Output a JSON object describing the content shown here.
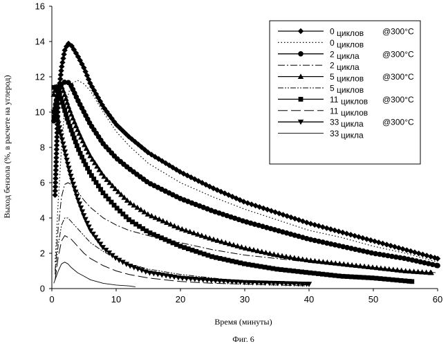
{
  "figure_caption": "Фиг. 6",
  "chart_data": {
    "type": "line",
    "xlabel": "Время (минуты)",
    "ylabel": "Выход бензола (%, в расчете на углерод)",
    "xlim": [
      0,
      60
    ],
    "ylim": [
      0,
      16
    ],
    "xticks": [
      0,
      10,
      20,
      30,
      40,
      50,
      60
    ],
    "yticks": [
      0,
      2,
      4,
      6,
      8,
      10,
      12,
      14,
      16
    ],
    "grid": false,
    "legend_position": "top-right",
    "series": [
      {
        "name": "0 циклов @300°C",
        "legend_main": "0",
        "legend_unit": "циклов",
        "legend_suffix": "@300°C",
        "style": "solid",
        "marker": "diamond",
        "x": [
          0.5,
          1,
          1.5,
          2,
          2.5,
          3,
          4,
          5,
          6,
          8,
          10,
          12,
          15,
          20,
          25,
          30,
          35,
          40,
          45,
          50,
          55,
          60
        ],
        "y": [
          5.3,
          10.8,
          12.5,
          13.5,
          13.9,
          13.8,
          13.2,
          12.5,
          11.6,
          10.3,
          9.3,
          8.6,
          7.7,
          6.6,
          5.7,
          4.9,
          4.3,
          3.7,
          3.2,
          2.7,
          2.2,
          1.7
        ]
      },
      {
        "name": "0 циклов",
        "legend_main": "0",
        "legend_unit": "циклов",
        "legend_suffix": "",
        "style": "dotted",
        "marker": "none",
        "x": [
          0.5,
          1,
          1.5,
          2,
          3,
          4,
          5,
          6,
          8,
          10,
          12,
          15,
          20,
          25,
          30,
          35,
          40,
          45,
          50,
          55,
          60
        ],
        "y": [
          1.5,
          5.0,
          8.0,
          10.2,
          11.6,
          11.8,
          11.6,
          11.2,
          10.0,
          8.9,
          8.1,
          7.1,
          6.0,
          5.2,
          4.5,
          3.9,
          3.3,
          2.9,
          2.4,
          2.0,
          1.5
        ]
      },
      {
        "name": "2 цикла @300°C",
        "legend_main": "2",
        "legend_unit": "цикла",
        "legend_suffix": "@300°C",
        "style": "solid",
        "marker": "circle",
        "x": [
          0.3,
          0.6,
          1,
          1.5,
          2,
          2.5,
          3,
          4,
          5,
          6,
          8,
          10,
          12,
          15,
          20,
          25,
          30,
          35,
          40,
          45,
          50,
          55,
          60
        ],
        "y": [
          9.5,
          10.5,
          11.2,
          11.6,
          11.7,
          11.7,
          11.5,
          10.7,
          10.0,
          9.3,
          8.2,
          7.4,
          6.8,
          6.0,
          5.1,
          4.4,
          3.8,
          3.3,
          2.8,
          2.4,
          2.0,
          1.7,
          1.3
        ]
      },
      {
        "name": "2 цикла",
        "legend_main": "2",
        "legend_unit": "цикла",
        "legend_suffix": "",
        "style": "dashdot",
        "marker": "none",
        "x": [
          0.5,
          1,
          1.5,
          2,
          2.5,
          3,
          4,
          5,
          6,
          8,
          10,
          12,
          15,
          20,
          25,
          30,
          35,
          40,
          45,
          50,
          55,
          60
        ],
        "y": [
          1.0,
          3.5,
          5.2,
          5.9,
          6.0,
          5.9,
          5.5,
          5.0,
          4.6,
          4.0,
          3.6,
          3.3,
          3.0,
          2.6,
          2.2,
          1.9,
          1.7,
          1.5,
          1.3,
          1.1,
          1.0,
          0.9
        ]
      },
      {
        "name": "5 циклов @300°C",
        "legend_main": "5",
        "legend_unit": "циклов",
        "legend_suffix": "@300°C",
        "style": "solid",
        "marker": "triangle",
        "x": [
          0.3,
          0.6,
          1,
          1.5,
          2,
          2.5,
          3,
          4,
          5,
          6,
          8,
          10,
          12,
          15,
          20,
          25,
          30,
          35,
          40,
          45,
          50,
          55,
          59
        ],
        "y": [
          11.0,
          11.4,
          11.6,
          11.5,
          11.0,
          10.4,
          9.9,
          9.0,
          8.2,
          7.5,
          6.4,
          5.6,
          4.9,
          4.2,
          3.4,
          2.8,
          2.3,
          1.9,
          1.6,
          1.4,
          1.2,
          1.0,
          0.9
        ]
      },
      {
        "name": "5 циклов",
        "legend_main": "5",
        "legend_unit": "циклов",
        "legend_suffix": "",
        "style": "dashdotdot",
        "marker": "none",
        "x": [
          0.5,
          1,
          1.5,
          2,
          2.5,
          3,
          4,
          5,
          6,
          8,
          10,
          12,
          15,
          20,
          25,
          30,
          35,
          40
        ],
        "y": [
          0.8,
          2.5,
          3.6,
          4.0,
          4.0,
          3.8,
          3.4,
          3.0,
          2.6,
          2.1,
          1.7,
          1.4,
          1.1,
          0.8,
          0.6,
          0.4,
          0.3,
          0.2
        ]
      },
      {
        "name": "11 циклов @300°C",
        "legend_main": "11",
        "legend_unit": "циклов",
        "legend_suffix": "@300°C",
        "style": "solid",
        "marker": "square",
        "x": [
          0.3,
          0.6,
          1,
          1.5,
          2,
          2.5,
          3,
          4,
          5,
          6,
          8,
          10,
          12,
          15,
          20,
          25,
          30,
          35,
          40,
          45,
          50,
          56
        ],
        "y": [
          11.4,
          11.5,
          11.2,
          10.7,
          10.1,
          9.5,
          9.0,
          8.0,
          7.2,
          6.5,
          5.4,
          4.6,
          3.9,
          3.2,
          2.4,
          1.8,
          1.4,
          1.1,
          0.9,
          0.7,
          0.6,
          0.4
        ]
      },
      {
        "name": "11 циклов",
        "legend_main": "11",
        "legend_unit": "циклов",
        "legend_suffix": "",
        "style": "longdash",
        "marker": "none",
        "x": [
          0.5,
          1,
          1.5,
          2,
          3,
          4,
          5,
          6,
          8,
          10,
          12,
          15,
          20,
          25,
          30,
          35,
          40
        ],
        "y": [
          0.5,
          1.8,
          2.7,
          3.0,
          2.8,
          2.4,
          2.0,
          1.7,
          1.3,
          1.0,
          0.8,
          0.6,
          0.4,
          0.3,
          0.25,
          0.2,
          0.15
        ]
      },
      {
        "name": "33 цикла @300°C",
        "legend_main": "33",
        "legend_unit": "цикла",
        "legend_suffix": "@300°C",
        "style": "solid",
        "marker": "triangle-down",
        "x": [
          0.3,
          0.6,
          1,
          1.5,
          2,
          2.5,
          3,
          4,
          5,
          6,
          8,
          10,
          12,
          15,
          20,
          25,
          30,
          35,
          40
        ],
        "y": [
          10.0,
          9.8,
          9.4,
          8.6,
          7.8,
          7.0,
          6.3,
          5.1,
          4.1,
          3.3,
          2.3,
          1.7,
          1.3,
          0.9,
          0.6,
          0.45,
          0.35,
          0.3,
          0.25
        ]
      },
      {
        "name": "33 цикла",
        "legend_main": "33",
        "legend_unit": "цикла",
        "legend_suffix": "",
        "style": "thin",
        "marker": "none",
        "x": [
          0.3,
          0.6,
          1,
          1.5,
          2,
          2.5,
          3,
          4,
          5,
          6,
          8,
          10,
          12,
          13
        ],
        "y": [
          0.3,
          0.6,
          1.0,
          1.4,
          1.5,
          1.4,
          1.2,
          0.9,
          0.7,
          0.5,
          0.3,
          0.2,
          0.15,
          0.1
        ]
      }
    ]
  }
}
